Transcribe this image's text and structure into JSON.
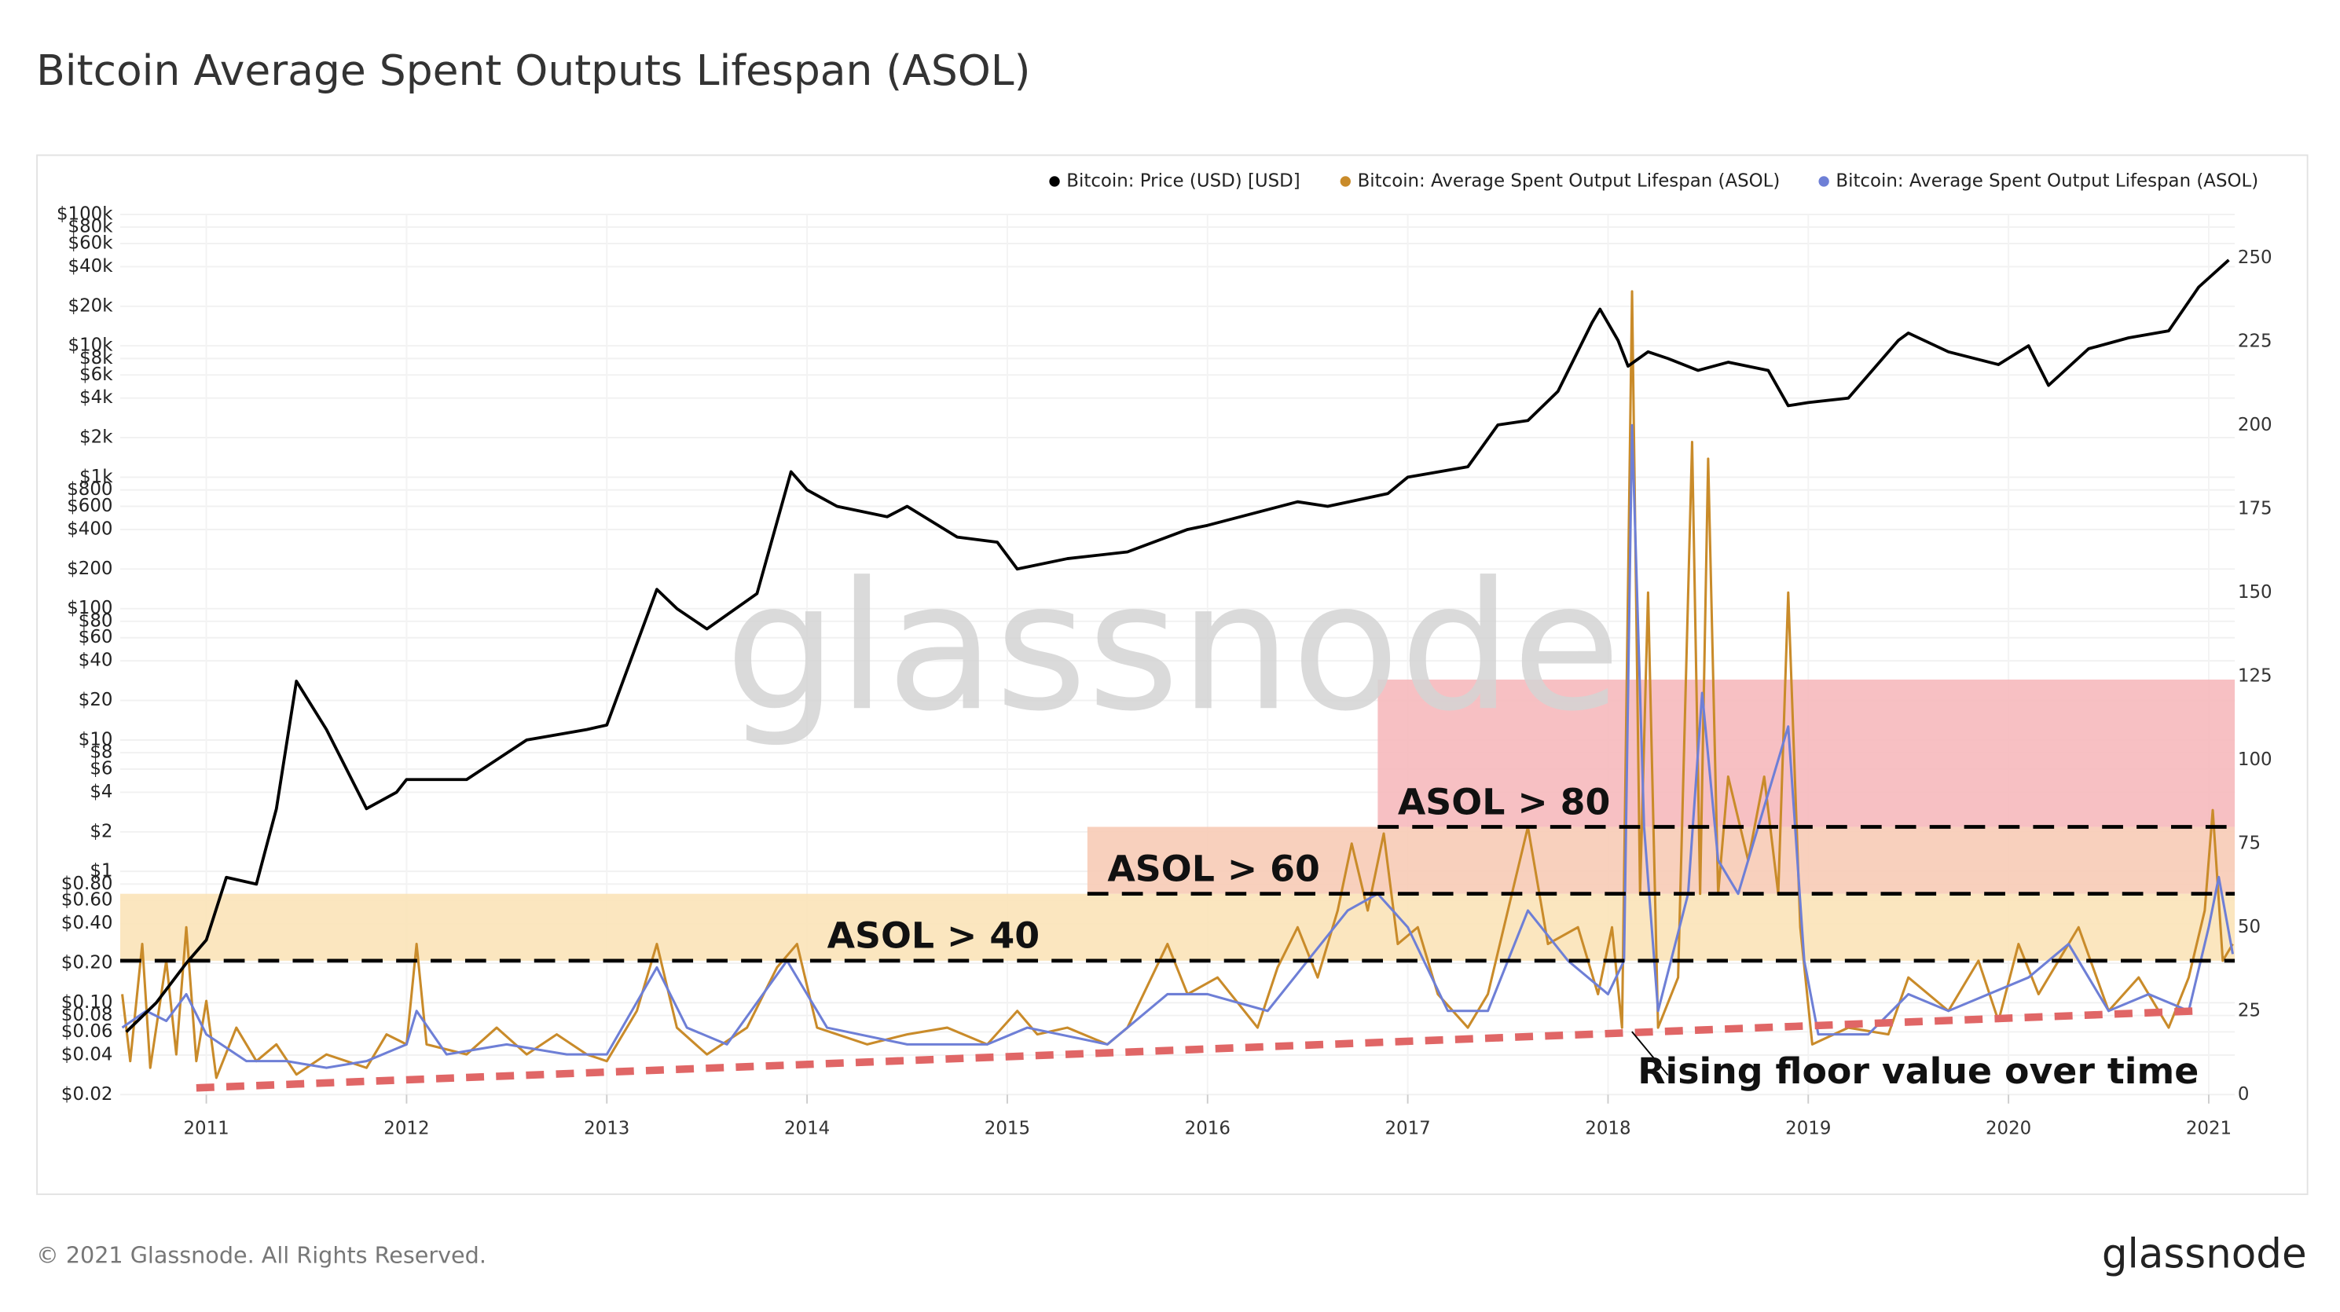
{
  "title": "Bitcoin Average Spent Outputs Lifespan (ASOL)",
  "footer": {
    "copyright": "© 2021 Glassnode. All Rights Reserved.",
    "logo": "glassnode"
  },
  "chart_data": {
    "type": "line",
    "watermark": "glassnode",
    "grid": true,
    "legend_position": "top-right",
    "xlim": [
      2010.57,
      2021.13
    ],
    "xticks": [
      2011,
      2012,
      2013,
      2014,
      2015,
      2016,
      2017,
      2018,
      2019,
      2020,
      2021
    ],
    "log_y": true,
    "ylim": [
      0.02,
      100000
    ],
    "yticks": [
      {
        "value": 0.02,
        "label": "$0.02"
      },
      {
        "value": 0.04,
        "label": "$0.04"
      },
      {
        "value": 0.06,
        "label": "$0.06"
      },
      {
        "value": 0.08,
        "label": "$0.08"
      },
      {
        "value": 0.1,
        "label": "$0.10"
      },
      {
        "value": 0.2,
        "label": "$0.20"
      },
      {
        "value": 0.4,
        "label": "$0.40"
      },
      {
        "value": 0.6,
        "label": "$0.60"
      },
      {
        "value": 0.8,
        "label": "$0.80"
      },
      {
        "value": 1,
        "label": "$1"
      },
      {
        "value": 2,
        "label": "$2"
      },
      {
        "value": 4,
        "label": "$4"
      },
      {
        "value": 6,
        "label": "$6"
      },
      {
        "value": 8,
        "label": "$8"
      },
      {
        "value": 10,
        "label": "$10"
      },
      {
        "value": 20,
        "label": "$20"
      },
      {
        "value": 40,
        "label": "$40"
      },
      {
        "value": 60,
        "label": "$60"
      },
      {
        "value": 80,
        "label": "$80"
      },
      {
        "value": 100,
        "label": "$100"
      },
      {
        "value": 200,
        "label": "$200"
      },
      {
        "value": 400,
        "label": "$400"
      },
      {
        "value": 600,
        "label": "$600"
      },
      {
        "value": 800,
        "label": "$800"
      },
      {
        "value": 1000,
        "label": "$1k"
      },
      {
        "value": 2000,
        "label": "$2k"
      },
      {
        "value": 4000,
        "label": "$4k"
      },
      {
        "value": 6000,
        "label": "$6k"
      },
      {
        "value": 8000,
        "label": "$8k"
      },
      {
        "value": 10000,
        "label": "$10k"
      },
      {
        "value": 20000,
        "label": "$20k"
      },
      {
        "value": 40000,
        "label": "$40k"
      },
      {
        "value": 60000,
        "label": "$60k"
      },
      {
        "value": 80000,
        "label": "$80k"
      },
      {
        "value": 100000,
        "label": "$100k"
      }
    ],
    "y2lim": [
      0,
      263
    ],
    "y2ticks": [
      0,
      25,
      50,
      75,
      100,
      125,
      150,
      175,
      200,
      225,
      250
    ],
    "series": [
      {
        "name": "Bitcoin: Price (USD) [USD]",
        "color": "#000000",
        "axis": "y",
        "x": [
          2010.6,
          2010.75,
          2010.9,
          2011.0,
          2011.1,
          2011.25,
          2011.35,
          2011.45,
          2011.6,
          2011.8,
          2011.95,
          2012.0,
          2012.3,
          2012.6,
          2012.9,
          2013.0,
          2013.25,
          2013.35,
          2013.5,
          2013.75,
          2013.92,
          2014.0,
          2014.15,
          2014.4,
          2014.5,
          2014.75,
          2014.95,
          2015.05,
          2015.3,
          2015.6,
          2015.9,
          2016.0,
          2016.45,
          2016.6,
          2016.9,
          2017.0,
          2017.3,
          2017.45,
          2017.6,
          2017.75,
          2017.92,
          2017.96,
          2018.05,
          2018.1,
          2018.2,
          2018.3,
          2018.45,
          2018.6,
          2018.8,
          2018.9,
          2019.0,
          2019.2,
          2019.45,
          2019.5,
          2019.7,
          2019.95,
          2020.1,
          2020.2,
          2020.4,
          2020.6,
          2020.8,
          2020.95,
          2021.1
        ],
        "values": [
          0.06,
          0.1,
          0.2,
          0.3,
          0.9,
          0.8,
          3,
          28,
          12,
          3,
          4,
          5,
          5,
          10,
          12,
          13,
          140,
          100,
          70,
          130,
          1100,
          800,
          600,
          500,
          600,
          350,
          320,
          200,
          240,
          270,
          400,
          430,
          650,
          600,
          750,
          1000,
          1200,
          2500,
          2700,
          4500,
          15000,
          19000,
          11000,
          7000,
          9000,
          8000,
          6500,
          7500,
          6500,
          3500,
          3700,
          4000,
          11000,
          12500,
          9000,
          7200,
          10000,
          5000,
          9500,
          11500,
          13000,
          28000,
          45000
        ]
      },
      {
        "name": "Bitcoin: Average Spent Output Lifespan (ASOL)",
        "color": "#c98b2a",
        "axis": "y2",
        "x": [
          2010.58,
          2010.62,
          2010.68,
          2010.72,
          2010.8,
          2010.85,
          2010.9,
          2010.95,
          2011.0,
          2011.05,
          2011.15,
          2011.25,
          2011.35,
          2011.45,
          2011.6,
          2011.8,
          2011.9,
          2012.0,
          2012.05,
          2012.1,
          2012.3,
          2012.45,
          2012.6,
          2012.75,
          2012.9,
          2013.0,
          2013.15,
          2013.25,
          2013.35,
          2013.5,
          2013.7,
          2013.85,
          2013.95,
          2014.05,
          2014.3,
          2014.5,
          2014.7,
          2014.9,
          2015.05,
          2015.15,
          2015.3,
          2015.5,
          2015.6,
          2015.8,
          2015.9,
          2016.05,
          2016.25,
          2016.35,
          2016.45,
          2016.55,
          2016.65,
          2016.72,
          2016.8,
          2016.88,
          2016.95,
          2017.05,
          2017.15,
          2017.3,
          2017.4,
          2017.5,
          2017.6,
          2017.7,
          2017.85,
          2017.95,
          2018.02,
          2018.07,
          2018.12,
          2018.16,
          2018.2,
          2018.25,
          2018.35,
          2018.42,
          2018.46,
          2018.5,
          2018.55,
          2018.6,
          2018.7,
          2018.78,
          2018.85,
          2018.9,
          2018.96,
          2019.02,
          2019.2,
          2019.4,
          2019.5,
          2019.7,
          2019.85,
          2019.95,
          2020.05,
          2020.15,
          2020.35,
          2020.5,
          2020.65,
          2020.8,
          2020.9,
          2020.98,
          2021.02,
          2021.07,
          2021.12
        ],
        "values": [
          30,
          10,
          45,
          8,
          40,
          12,
          50,
          10,
          28,
          5,
          20,
          10,
          15,
          6,
          12,
          8,
          18,
          15,
          45,
          15,
          12,
          20,
          12,
          18,
          12,
          10,
          25,
          45,
          20,
          12,
          20,
          38,
          45,
          20,
          15,
          18,
          20,
          15,
          25,
          18,
          20,
          15,
          20,
          45,
          30,
          35,
          20,
          38,
          50,
          35,
          55,
          75,
          55,
          78,
          45,
          50,
          30,
          20,
          30,
          55,
          80,
          45,
          50,
          30,
          50,
          20,
          240,
          60,
          150,
          20,
          35,
          195,
          60,
          190,
          60,
          95,
          70,
          95,
          60,
          150,
          50,
          15,
          20,
          18,
          35,
          25,
          40,
          22,
          45,
          30,
          50,
          25,
          35,
          20,
          35,
          55,
          85,
          40,
          45
        ]
      },
      {
        "name": "Bitcoin: Average Spent Output Lifespan (ASOL)",
        "color": "#6e7fd6",
        "axis": "y2",
        "x": [
          2010.58,
          2010.7,
          2010.8,
          2010.9,
          2011.0,
          2011.2,
          2011.4,
          2011.6,
          2011.8,
          2012.0,
          2012.05,
          2012.2,
          2012.5,
          2012.8,
          2013.0,
          2013.25,
          2013.4,
          2013.6,
          2013.9,
          2014.1,
          2014.5,
          2014.9,
          2015.1,
          2015.5,
          2015.8,
          2016.0,
          2016.3,
          2016.5,
          2016.7,
          2016.85,
          2017.0,
          2017.2,
          2017.4,
          2017.6,
          2017.8,
          2018.0,
          2018.08,
          2018.12,
          2018.18,
          2018.25,
          2018.4,
          2018.47,
          2018.55,
          2018.65,
          2018.8,
          2018.9,
          2018.98,
          2019.05,
          2019.3,
          2019.5,
          2019.7,
          2019.9,
          2020.1,
          2020.3,
          2020.5,
          2020.7,
          2020.9,
          2021.0,
          2021.05,
          2021.12
        ],
        "values": [
          20,
          25,
          22,
          30,
          18,
          10,
          10,
          8,
          10,
          15,
          25,
          12,
          15,
          12,
          12,
          38,
          20,
          15,
          40,
          20,
          15,
          15,
          20,
          15,
          30,
          30,
          25,
          40,
          55,
          60,
          50,
          25,
          25,
          55,
          40,
          30,
          40,
          200,
          80,
          25,
          60,
          120,
          70,
          60,
          90,
          110,
          40,
          18,
          18,
          30,
          25,
          30,
          35,
          45,
          25,
          30,
          25,
          50,
          65,
          42
        ]
      }
    ],
    "bands": [
      {
        "from_x": 2010.57,
        "y": [
          40,
          60
        ],
        "color": "#fbe3b8"
      },
      {
        "from_x": 2015.4,
        "y": [
          60,
          80
        ],
        "color": "#f7cbb6"
      },
      {
        "from_x": 2016.85,
        "y": [
          80,
          124
        ],
        "color": "#f6b9bd"
      }
    ],
    "thresholds": [
      {
        "label": "ASOL > 40",
        "value": 40,
        "from_x": 2010.57
      },
      {
        "label": "ASOL > 60",
        "value": 60,
        "from_x": 2015.4
      },
      {
        "label": "ASOL > 80",
        "value": 80,
        "from_x": 2016.85
      }
    ],
    "floor": {
      "label": "Rising floor value over time",
      "x": [
        2010.95,
        2020.94
      ],
      "values": [
        2,
        25
      ],
      "color": "#e06666"
    }
  }
}
